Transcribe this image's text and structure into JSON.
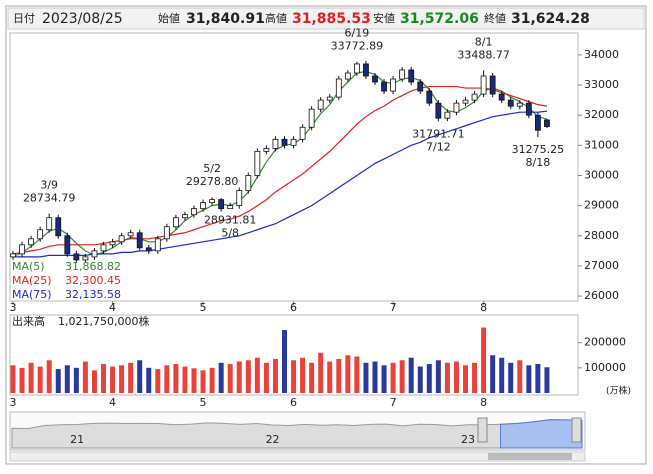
{
  "header": {
    "date_label": "日付",
    "date": "2023/08/25",
    "open_label": "始値",
    "open": "31,840.91",
    "high_label": "高値",
    "high": "31,885.53",
    "low_label": "安値",
    "low": "31,572.06",
    "close_label": "終値",
    "close": "31,624.28"
  },
  "chart_data": {
    "type": "candlestick",
    "categories": [
      "3",
      null,
      null,
      null,
      null,
      null,
      null,
      null,
      null,
      null,
      null,
      "4",
      null,
      null,
      null,
      null,
      null,
      null,
      null,
      null,
      null,
      "5",
      null,
      null,
      null,
      null,
      null,
      null,
      null,
      null,
      null,
      "6",
      null,
      null,
      null,
      null,
      null,
      null,
      null,
      null,
      null,
      null,
      "7",
      null,
      null,
      null,
      null,
      null,
      null,
      null,
      null,
      null,
      "8",
      null,
      null,
      null,
      null,
      null,
      null,
      null
    ],
    "open": [
      27300,
      27400,
      27700,
      27900,
      28200,
      28600,
      28000,
      27400,
      27200,
      27300,
      27500,
      27700,
      27800,
      28000,
      28100,
      27600,
      27500,
      27900,
      28300,
      28600,
      28700,
      28900,
      29100,
      29200,
      28900,
      29000,
      29500,
      30000,
      30800,
      30900,
      31200,
      31000,
      31200,
      31600,
      32200,
      32500,
      32600,
      33200,
      33400,
      33700,
      33300,
      33100,
      32800,
      33200,
      33500,
      33100,
      32800,
      32400,
      31900,
      32100,
      32400,
      32500,
      32700,
      33300,
      32700,
      32500,
      32300,
      32400,
      32000,
      31840.91
    ],
    "high": [
      27500,
      27800,
      28000,
      28300,
      28734.79,
      28700,
      28100,
      27500,
      27400,
      27600,
      27800,
      27900,
      28100,
      28200,
      28200,
      27700,
      28000,
      28400,
      28700,
      28800,
      29000,
      29200,
      29278.8,
      29250,
      29100,
      29600,
      30100,
      30900,
      31000,
      31300,
      31300,
      31300,
      31700,
      32300,
      32600,
      32700,
      33300,
      33500,
      33772.89,
      33800,
      33400,
      33200,
      33300,
      33600,
      33600,
      33200,
      32900,
      32500,
      32200,
      32500,
      32600,
      32800,
      33488.77,
      33400,
      32800,
      32600,
      32500,
      32500,
      32100,
      31885.53
    ],
    "low": [
      27200,
      27300,
      27600,
      27800,
      28100,
      27900,
      27300,
      27100,
      27100,
      27200,
      27400,
      27600,
      27700,
      27900,
      27500,
      27400,
      27400,
      27800,
      28200,
      28500,
      28600,
      28800,
      29000,
      28800,
      28931.81,
      28900,
      29400,
      29900,
      30700,
      30800,
      30900,
      30900,
      31100,
      31500,
      32100,
      32400,
      32500,
      33100,
      33300,
      33200,
      33000,
      32700,
      32700,
      33100,
      33000,
      32700,
      32300,
      31791.71,
      31800,
      32000,
      32300,
      32400,
      32600,
      32600,
      32400,
      32200,
      32200,
      31900,
      31275.25,
      31572.06
    ],
    "close": [
      27400,
      27700,
      27900,
      28200,
      28600,
      28000,
      27400,
      27200,
      27300,
      27500,
      27700,
      27800,
      28000,
      28100,
      27600,
      27500,
      27900,
      28300,
      28600,
      28700,
      28900,
      29100,
      29200,
      28900,
      29000,
      29500,
      30000,
      30800,
      30900,
      31200,
      31000,
      31200,
      31600,
      32200,
      32500,
      32600,
      33200,
      33400,
      33700,
      33300,
      33100,
      32800,
      33200,
      33500,
      33100,
      32800,
      32400,
      31900,
      32100,
      32400,
      32500,
      32700,
      33300,
      32700,
      32500,
      32300,
      32400,
      32000,
      31500,
      31624.28
    ],
    "up_color": "#ffffff",
    "down_color": "#1a2a7a",
    "ylim": [
      25870,
      34660
    ],
    "yticks": [
      26000,
      27000,
      28000,
      29000,
      30000,
      31000,
      32000,
      33000,
      34000
    ],
    "series": [
      {
        "name": "MA(5)",
        "color": "#2e8b2e",
        "current": {
          "value": 31868.82,
          "label": "31,868.82"
        },
        "values": [
          27300,
          27450,
          27650,
          27900,
          28150,
          28250,
          28050,
          27750,
          27500,
          27350,
          27450,
          27600,
          27800,
          27950,
          27900,
          27800,
          27800,
          27950,
          28200,
          28500,
          28700,
          28850,
          29000,
          29050,
          29000,
          29150,
          29450,
          29950,
          30450,
          30850,
          31000,
          31050,
          31250,
          31650,
          32050,
          32350,
          32800,
          33100,
          33400,
          33450,
          33350,
          33100,
          33050,
          33200,
          33250,
          33150,
          32850,
          32400,
          32150,
          32100,
          32250,
          32450,
          32800,
          32900,
          32800,
          32600,
          32450,
          32250,
          31950,
          31868.82
        ]
      },
      {
        "name": "MA(25)",
        "color": "#e02020",
        "current": {
          "value": 32300.45,
          "label": "32,300.45"
        },
        "values": [
          27400,
          27450,
          27500,
          27550,
          27650,
          27700,
          27700,
          27700,
          27700,
          27700,
          27750,
          27800,
          27850,
          27900,
          27900,
          27900,
          27950,
          28000,
          28050,
          28100,
          28200,
          28300,
          28400,
          28500,
          28550,
          28650,
          28800,
          29000,
          29200,
          29450,
          29650,
          29850,
          30050,
          30300,
          30550,
          30800,
          31100,
          31400,
          31700,
          31950,
          32150,
          32300,
          32500,
          32650,
          32800,
          32900,
          32950,
          32950,
          32950,
          32950,
          32900,
          32900,
          32900,
          32850,
          32750,
          32650,
          32550,
          32450,
          32350,
          32300.45
        ]
      },
      {
        "name": "MA(75)",
        "color": "#1a2ad0",
        "current": {
          "value": 32135.58,
          "label": "32,135.58"
        },
        "values": [
          27300,
          27300,
          27300,
          27300,
          27350,
          27350,
          27350,
          27350,
          27350,
          27400,
          27400,
          27400,
          27450,
          27450,
          27500,
          27500,
          27550,
          27600,
          27650,
          27700,
          27750,
          27800,
          27850,
          27900,
          27950,
          28000,
          28100,
          28200,
          28300,
          28400,
          28550,
          28700,
          28850,
          29000,
          29200,
          29400,
          29600,
          29800,
          30000,
          30200,
          30400,
          30550,
          30700,
          30850,
          31000,
          31100,
          31250,
          31350,
          31450,
          31550,
          31650,
          31750,
          31850,
          31950,
          32000,
          32050,
          32100,
          32100,
          32100,
          32135.58
        ]
      }
    ],
    "annotations": [
      {
        "date": "3/9",
        "value": 28734.79
      },
      {
        "date": "5/2",
        "value": {
          "value": 29278.8,
          "label": "29278.80"
        }
      },
      {
        "date": "5/8",
        "value": 28931.81
      },
      {
        "date": "6/19",
        "value": 33772.89
      },
      {
        "date": "7/12",
        "value": 31791.71
      },
      {
        "date": "8/1",
        "value": 33488.77
      },
      {
        "date": "8/18",
        "value": 31275.25
      }
    ],
    "volume": {
      "label": "出来高",
      "total": "1,021,750,000株",
      "unit": "(万株)",
      "up_color": "#e8433b",
      "down_color": "#2a3a9a",
      "ylim": [
        0,
        290000
      ],
      "yticks": [
        100000,
        200000
      ],
      "values": [
        110000,
        100000,
        120000,
        105000,
        130000,
        95000,
        110000,
        100000,
        125000,
        90000,
        115000,
        105000,
        110000,
        120000,
        130000,
        100000,
        95000,
        110000,
        115000,
        105000,
        98000,
        90000,
        100000,
        120000,
        115000,
        125000,
        130000,
        140000,
        120000,
        135000,
        250000,
        130000,
        140000,
        120000,
        160000,
        125000,
        135000,
        150000,
        145000,
        120000,
        125000,
        110000,
        120000,
        130000,
        140000,
        105000,
        115000,
        130000,
        120000,
        125000,
        110000,
        120000,
        260000,
        150000,
        140000,
        120000,
        130000,
        110000,
        115000,
        102175
      ]
    },
    "navigator": {
      "categories": [
        null,
        null,
        null,
        null,
        "21",
        null,
        null,
        null,
        null,
        null,
        null,
        null,
        null,
        null,
        null,
        null,
        "22",
        null,
        null,
        null,
        null,
        null,
        null,
        null,
        null,
        null,
        null,
        null,
        "23",
        null,
        null,
        null,
        null,
        null,
        null,
        null
      ],
      "values": [
        23200,
        23000,
        26400,
        27400,
        27700,
        28900,
        29200,
        28800,
        28900,
        28800,
        27300,
        28100,
        29500,
        28900,
        27800,
        28800,
        27000,
        26500,
        27800,
        26800,
        27300,
        26400,
        27800,
        28100,
        26000,
        27900,
        27600,
        26000,
        27300,
        27400,
        28000,
        28800,
        30800,
        33200,
        33100,
        32600
      ],
      "ylim": [
        0,
        40000
      ]
    }
  }
}
